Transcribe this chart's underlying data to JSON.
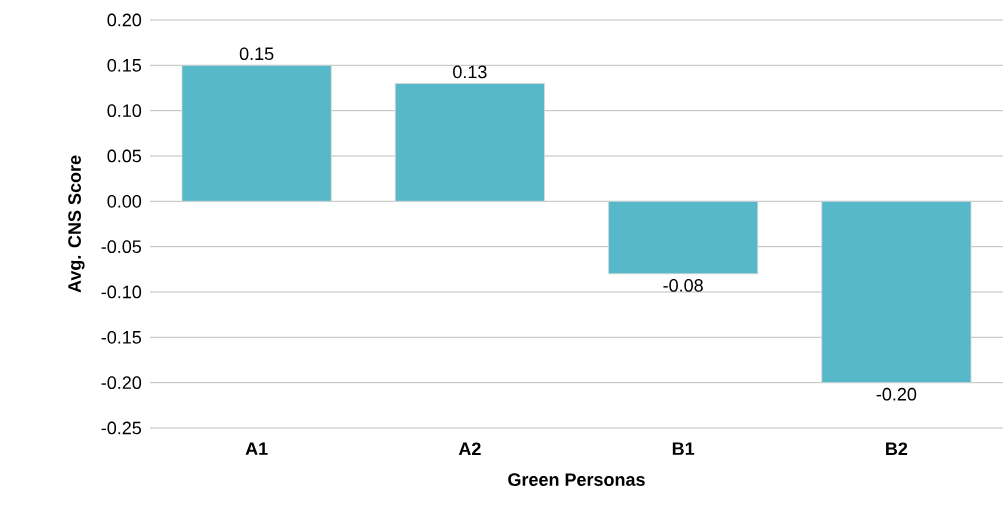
{
  "chart_data": {
    "type": "bar",
    "xlabel": "Green Personas",
    "ylabel": "Avg. CNS Score",
    "categories": [
      "A1",
      "A2",
      "B1",
      "B2"
    ],
    "values": [
      0.15,
      0.13,
      -0.08,
      -0.2
    ],
    "value_labels": [
      "0.15",
      "0.13",
      "-0.08",
      "-0.20"
    ],
    "color": "#56b8c8",
    "ylim": [
      -0.25,
      0.2
    ],
    "yticks": [
      {
        "value": -0.25,
        "label": "-0.25"
      },
      {
        "value": -0.2,
        "label": "-0.20"
      },
      {
        "value": -0.15,
        "label": "-0.15"
      },
      {
        "value": -0.1,
        "label": "-0.10"
      },
      {
        "value": -0.05,
        "label": "-0.05"
      },
      {
        "value": 0,
        "label": "0.00"
      },
      {
        "value": 0.05,
        "label": "0.05"
      },
      {
        "value": 0.1,
        "label": "0.10"
      },
      {
        "value": 0.15,
        "label": "0.15"
      },
      {
        "value": 0.2,
        "label": "0.20"
      }
    ],
    "grid": "y"
  }
}
